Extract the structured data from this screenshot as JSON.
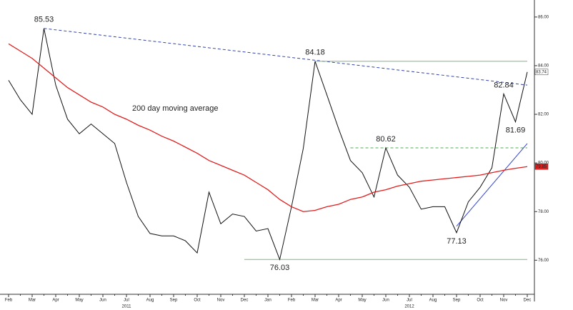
{
  "chart_data": {
    "type": "line",
    "categories": [
      "Feb",
      null,
      "Mar",
      null,
      "Apr",
      null,
      "May",
      null,
      "Jun",
      null,
      "Jul",
      null,
      "Aug",
      null,
      "Sep",
      null,
      "Oct",
      null,
      "Nov",
      null,
      "Dec",
      null,
      "Jan",
      null,
      "Feb",
      null,
      "Mar",
      null,
      "Apr",
      null,
      "May",
      null,
      "Jun",
      null,
      "Jul",
      null,
      "Aug",
      null,
      "Sep",
      null,
      "Oct",
      null,
      "Nov",
      null,
      "Dec"
    ],
    "x_group_labels": [
      "2011",
      "2012"
    ],
    "series": [
      {
        "name": null,
        "color": "#111111",
        "values": [
          83.4,
          82.6,
          82.0,
          85.53,
          83.2,
          81.8,
          81.2,
          81.6,
          81.2,
          80.8,
          79.2,
          77.8,
          77.1,
          77.0,
          77.0,
          76.8,
          76.3,
          78.8,
          77.5,
          77.9,
          77.8,
          77.2,
          77.3,
          76.03,
          78.2,
          80.6,
          84.18,
          82.8,
          81.4,
          80.1,
          79.6,
          78.6,
          80.62,
          79.5,
          79.0,
          78.1,
          78.2,
          78.2,
          77.13,
          78.4,
          79.0,
          79.8,
          82.84,
          81.69,
          83.74
        ],
        "value_labels": [
          null,
          null,
          null,
          "85.53",
          null,
          null,
          null,
          null,
          null,
          null,
          null,
          null,
          null,
          null,
          null,
          null,
          null,
          null,
          null,
          null,
          null,
          null,
          null,
          "76.03",
          null,
          null,
          "84.18",
          null,
          null,
          null,
          null,
          null,
          "80.62",
          null,
          null,
          null,
          null,
          null,
          "77.13",
          null,
          null,
          null,
          "82.84",
          "81.69",
          null
        ]
      },
      {
        "name": "200 day moving average",
        "color": "#e02020",
        "values": [
          84.9,
          84.6,
          84.3,
          83.9,
          83.5,
          83.1,
          82.8,
          82.5,
          82.3,
          82.0,
          81.8,
          81.55,
          81.35,
          81.1,
          80.9,
          80.65,
          80.4,
          80.1,
          79.9,
          79.7,
          79.5,
          79.2,
          78.9,
          78.5,
          78.2,
          78.0,
          78.05,
          78.2,
          78.3,
          78.5,
          78.6,
          78.8,
          78.9,
          79.05,
          79.15,
          79.25,
          79.3,
          79.35,
          79.4,
          79.45,
          79.5,
          79.6,
          79.7,
          79.78,
          79.85
        ]
      }
    ],
    "reference_lines": [
      {
        "color": "#3344aa",
        "dashed": true,
        "start_index": 3,
        "start_value": 85.53,
        "end_index": 44,
        "end_value": 83.2
      },
      {
        "color": "#7ab87a",
        "dashed": false,
        "start_index": 26,
        "start_value": 84.18,
        "end_index": 44,
        "end_value": 84.18
      },
      {
        "color": "#4caf50",
        "dashed": true,
        "start_index": 29,
        "start_value": 80.62,
        "end_index": 44,
        "end_value": 80.62
      },
      {
        "color": "#7ab87a",
        "dashed": false,
        "start_index": 20,
        "start_value": 76.03,
        "end_index": 44,
        "end_value": 76.03
      },
      {
        "color": "#3344cc",
        "dashed": false,
        "start_index": 38,
        "start_value": 77.4,
        "end_index": 44,
        "end_value": 80.8
      }
    ],
    "ylim": [
      74.6,
      86.7
    ],
    "yticks": [
      {
        "value": 76,
        "label": "76.00"
      },
      {
        "value": 78,
        "label": "78.00"
      },
      {
        "value": 80,
        "label": "80.00"
      },
      {
        "value": 82,
        "label": "82.00"
      },
      {
        "value": 84,
        "label": "84.00"
      },
      {
        "value": 86,
        "label": "86.00"
      }
    ]
  }
}
